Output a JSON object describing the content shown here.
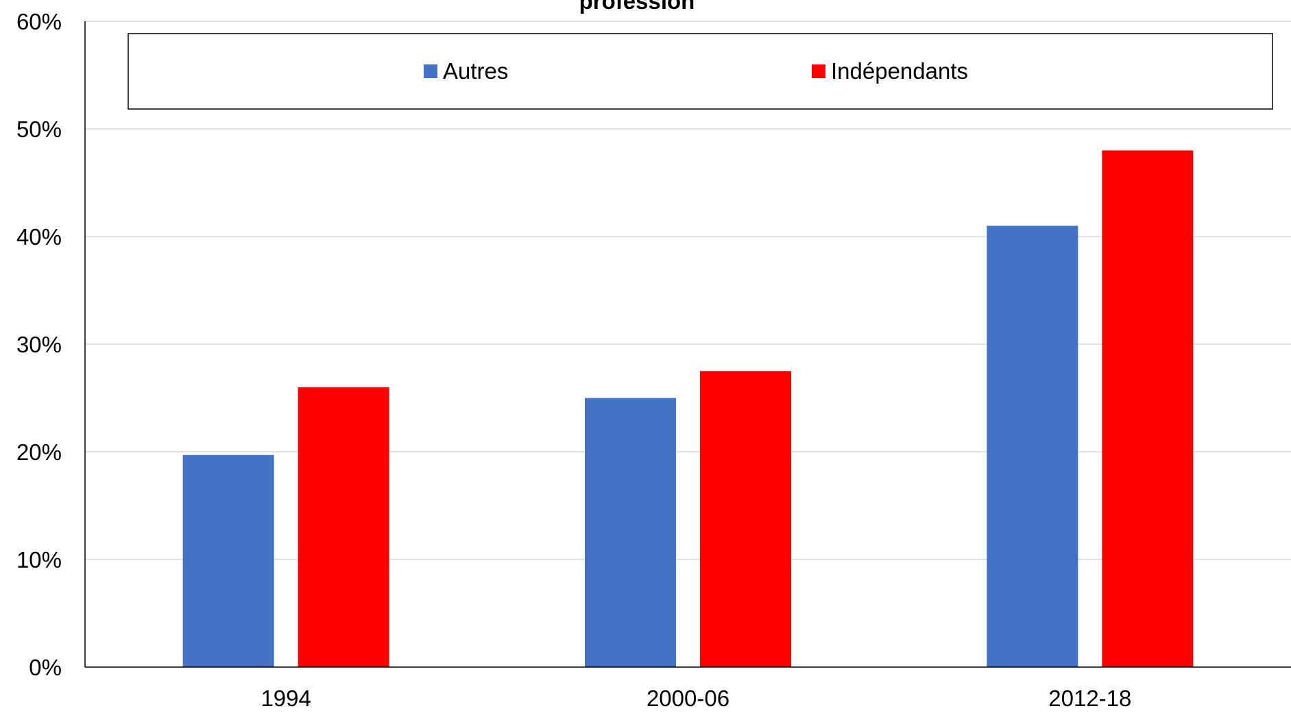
{
  "chart_data": {
    "type": "bar",
    "title": "profession",
    "categories": [
      "1994",
      "2000-06",
      "2012-18"
    ],
    "series": [
      {
        "name": "Autres",
        "values": [
          0.197,
          0.25,
          0.41
        ],
        "color": "#4472C4"
      },
      {
        "name": "Indépendants",
        "values": [
          0.26,
          0.275,
          0.48
        ],
        "color": "#FF0000"
      }
    ],
    "xlabel": "",
    "ylabel": "",
    "ylim": [
      0,
      0.6
    ],
    "yticks": [
      {
        "value": 0,
        "label": "0%"
      },
      {
        "value": 0.1,
        "label": "10%"
      },
      {
        "value": 0.2,
        "label": "20%"
      },
      {
        "value": 0.3,
        "label": "30%"
      },
      {
        "value": 0.4,
        "label": "40%"
      },
      {
        "value": 0.5,
        "label": "50%"
      },
      {
        "value": 0.6,
        "label": "60%"
      }
    ],
    "grid": true,
    "legend_position": "top"
  }
}
